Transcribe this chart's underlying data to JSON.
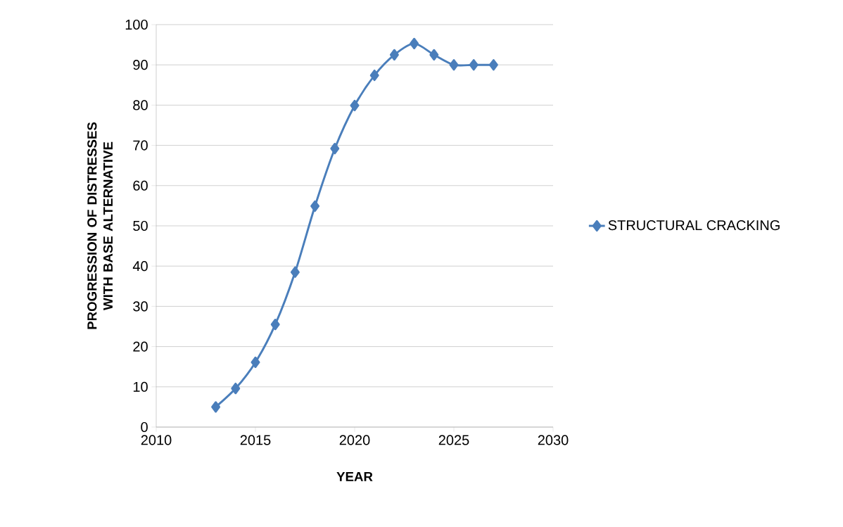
{
  "chart_data": {
    "type": "line",
    "xlabel": "YEAR",
    "ylabel": "PROGRESSION OF DISTRESSES WITH BASE ALTERNATIVE",
    "x": [
      2013,
      2014,
      2015,
      2016,
      2017,
      2018,
      2019,
      2020,
      2021,
      2022,
      2023,
      2024,
      2025,
      2026,
      2027
    ],
    "series": [
      {
        "name": "STRUCTURAL CRACKING",
        "color": "#4a7ebb",
        "values": [
          5,
          9.6,
          16.1,
          25.5,
          38.5,
          54.9,
          69.2,
          79.9,
          87.4,
          92.5,
          95.3,
          92.5,
          90,
          90,
          90
        ]
      }
    ],
    "xlim": [
      2010,
      2030
    ],
    "xticks": [
      2010,
      2015,
      2020,
      2025,
      2030
    ],
    "ylim": [
      0,
      100
    ],
    "yticks": [
      0,
      10,
      20,
      30,
      40,
      50,
      60,
      70,
      80,
      90,
      100
    ],
    "grid": "y",
    "legend": "right",
    "marker": "diamond",
    "line_style": "solid"
  }
}
